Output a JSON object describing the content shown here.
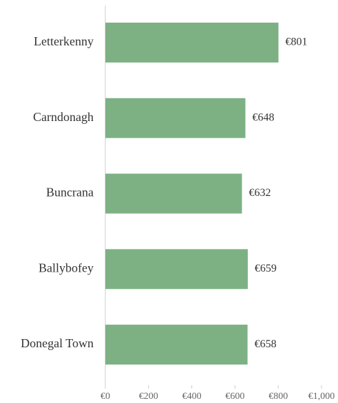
{
  "chart_data": {
    "type": "bar",
    "orientation": "horizontal",
    "categories": [
      "Letterkenny",
      "Carndonagh",
      "Buncrana",
      "Ballybofey",
      "Donegal Town"
    ],
    "values": [
      801,
      648,
      632,
      659,
      658
    ],
    "value_labels": [
      "€801",
      "€648",
      "€632",
      "€659",
      "€658"
    ],
    "color": "#7db184",
    "xlim": [
      0,
      1000
    ],
    "xticks": [
      {
        "value": 0,
        "label": "€0"
      },
      {
        "value": 200,
        "label": "€200"
      },
      {
        "value": 400,
        "label": "€400"
      },
      {
        "value": 600,
        "label": "€600"
      },
      {
        "value": 800,
        "label": "€800"
      },
      {
        "value": 1000,
        "label": "€1,000"
      }
    ],
    "grid": false
  }
}
